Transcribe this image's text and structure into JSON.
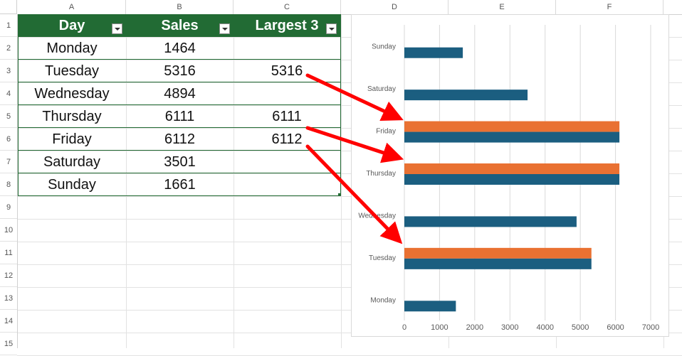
{
  "columns": [
    "A",
    "B",
    "C",
    "D",
    "E",
    "F"
  ],
  "rows": [
    "1",
    "2",
    "3",
    "4",
    "5",
    "6",
    "7",
    "8",
    "9",
    "10",
    "11",
    "12",
    "13",
    "14",
    "15"
  ],
  "table": {
    "headers": [
      "Day",
      "Sales",
      "Largest 3"
    ],
    "rows": [
      {
        "day": "Monday",
        "sales": "1464",
        "largest": ""
      },
      {
        "day": "Tuesday",
        "sales": "5316",
        "largest": "5316"
      },
      {
        "day": "Wednesday",
        "sales": "4894",
        "largest": ""
      },
      {
        "day": "Thursday",
        "sales": "6111",
        "largest": "6111"
      },
      {
        "day": "Friday",
        "sales": "6112",
        "largest": "6112"
      },
      {
        "day": "Saturday",
        "sales": "3501",
        "largest": ""
      },
      {
        "day": "Sunday",
        "sales": "1661",
        "largest": ""
      }
    ]
  },
  "colors": {
    "header_green": "#226b34",
    "sales_blue": "#1b5e80",
    "largest_orange": "#e97132",
    "arrow_red": "#ff0000"
  },
  "chart_data": {
    "type": "bar",
    "orientation": "horizontal",
    "categories": [
      "Monday",
      "Tuesday",
      "Wednesday",
      "Thursday",
      "Friday",
      "Saturday",
      "Sunday"
    ],
    "series": [
      {
        "values": [
          1464,
          5316,
          4894,
          6111,
          6112,
          3501,
          1661
        ]
      },
      {
        "values": [
          null,
          5316,
          null,
          6111,
          6112,
          null,
          null
        ]
      }
    ],
    "xlim": [
      0,
      7000
    ],
    "xticks": [
      0,
      1000,
      2000,
      3000,
      4000,
      5000,
      6000,
      7000
    ],
    "grid": true,
    "legend": "none"
  }
}
